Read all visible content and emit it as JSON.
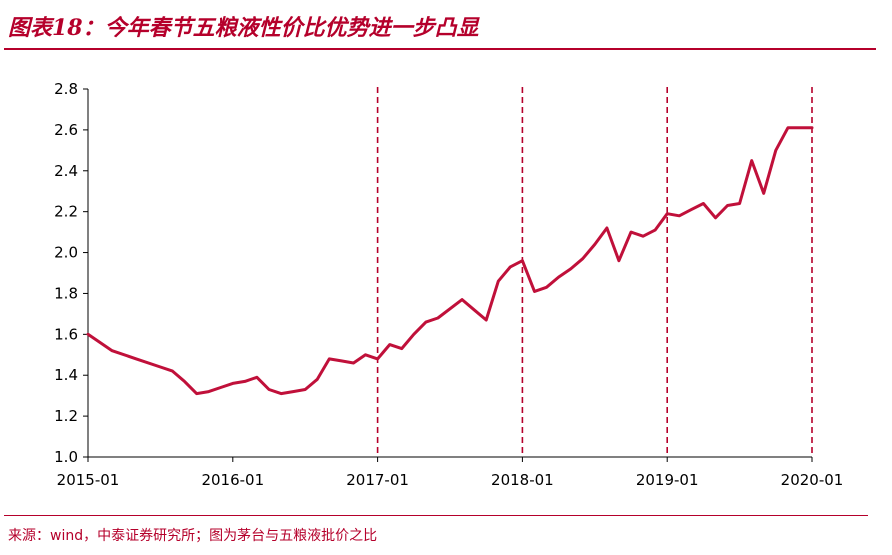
{
  "header": {
    "title": "图表18：今年春节五粮液性价比优势进一步凸显"
  },
  "footer": {
    "source": "来源：wind，中泰证券研究所；图为茅台与五粮液批价之比"
  },
  "colors": {
    "accent": "#b5002b",
    "line": "#c0103a"
  },
  "chart_data": {
    "type": "line",
    "title": "",
    "xlabel": "",
    "ylabel": "",
    "ylim": [
      1.0,
      2.8
    ],
    "y_ticks": [
      "1.0",
      "1.2",
      "1.4",
      "1.6",
      "1.8",
      "2.0",
      "2.2",
      "2.4",
      "2.6",
      "2.8"
    ],
    "x_tick_labels": [
      "2015-01",
      "2016-01",
      "2017-01",
      "2018-01",
      "2019-01",
      "2020-01"
    ],
    "x_tick_dates": [
      "2015-01",
      "2016-01",
      "2017-01",
      "2018-01",
      "2019-01",
      "2020-01"
    ],
    "x_range": [
      "2015-01",
      "2020-01"
    ],
    "grid": false,
    "reference_lines": [
      "2017-01",
      "2018-01",
      "2019-01",
      "2020-01"
    ],
    "series": [
      {
        "name": "",
        "x": [
          "2015-01",
          "2015-03",
          "2015-05",
          "2015-07",
          "2015-08",
          "2015-09",
          "2015-10",
          "2015-11",
          "2015-12",
          "2016-01",
          "2016-02",
          "2016-03",
          "2016-04",
          "2016-05",
          "2016-06",
          "2016-07",
          "2016-08",
          "2016-09",
          "2016-10",
          "2016-11",
          "2016-12",
          "2017-01",
          "2017-02",
          "2017-03",
          "2017-04",
          "2017-05",
          "2017-06",
          "2017-08",
          "2017-09",
          "2017-10",
          "2017-11",
          "2017-12",
          "2018-01",
          "2018-02",
          "2018-03",
          "2018-04",
          "2018-05",
          "2018-06",
          "2018-07",
          "2018-08",
          "2018-09",
          "2018-10",
          "2018-11",
          "2018-12",
          "2019-01",
          "2019-02",
          "2019-03",
          "2019-04",
          "2019-05",
          "2019-06",
          "2019-07",
          "2019-08",
          "2019-09",
          "2019-10",
          "2019-11",
          "2019-12",
          "2020-01"
        ],
        "values": [
          1.6,
          1.52,
          1.48,
          1.44,
          1.42,
          1.37,
          1.31,
          1.32,
          1.34,
          1.36,
          1.37,
          1.39,
          1.33,
          1.31,
          1.32,
          1.33,
          1.38,
          1.48,
          1.47,
          1.46,
          1.5,
          1.48,
          1.55,
          1.53,
          1.6,
          1.66,
          1.68,
          1.77,
          1.72,
          1.67,
          1.86,
          1.93,
          1.96,
          1.81,
          1.83,
          1.88,
          1.92,
          1.97,
          2.04,
          2.12,
          1.96,
          2.1,
          2.08,
          2.11,
          2.19,
          2.18,
          2.21,
          2.24,
          2.17,
          2.23,
          2.24,
          2.45,
          2.29,
          2.5,
          2.61,
          2.61,
          2.61
        ]
      }
    ]
  }
}
